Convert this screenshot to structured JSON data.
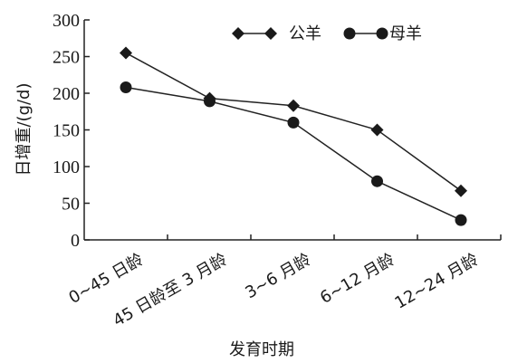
{
  "chart_data": {
    "type": "line",
    "categories": [
      "0~45 日龄",
      "45 日龄至 3 月龄",
      "3~6 月龄",
      "6~12 月龄",
      "12~24 月龄"
    ],
    "series": [
      {
        "name": "公羊",
        "marker": "diamond",
        "values": [
          255,
          193,
          183,
          150,
          67
        ]
      },
      {
        "name": "母羊",
        "marker": "circle",
        "values": [
          208,
          189,
          160,
          80,
          27
        ]
      }
    ],
    "xlabel": "发育时期",
    "ylabel": "日增重/(g/d)",
    "ylim": [
      0,
      300
    ],
    "yticks": [
      0,
      50,
      100,
      150,
      200,
      250,
      300
    ],
    "grid": false,
    "legend": "top-right",
    "colors": {
      "line": "#222222",
      "marker": "#1a1a1a",
      "axis": "#222222"
    }
  }
}
